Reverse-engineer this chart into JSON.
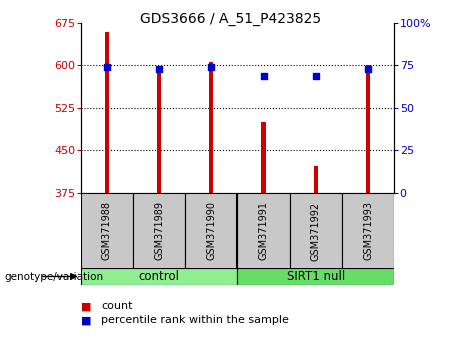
{
  "title": "GDS3666 / A_51_P423825",
  "samples": [
    "GSM371988",
    "GSM371989",
    "GSM371990",
    "GSM371991",
    "GSM371992",
    "GSM371993"
  ],
  "bar_values": [
    660,
    590,
    607,
    500,
    422,
    601
  ],
  "percentile_values": [
    74,
    73,
    74,
    69,
    69,
    73
  ],
  "ylim_left": [
    375,
    675
  ],
  "ylim_right": [
    0,
    100
  ],
  "yticks_left": [
    375,
    450,
    525,
    600,
    675
  ],
  "yticks_right": [
    0,
    25,
    50,
    75,
    100
  ],
  "bar_color": "#cc0000",
  "dot_color": "#0000cc",
  "bar_width": 0.08,
  "group_colors": [
    "#90ee90",
    "#66dd66"
  ],
  "group_labels": [
    "control",
    "SIRT1 null"
  ],
  "group_sizes": [
    3,
    3
  ],
  "ylabel_left_color": "#cc0000",
  "ylabel_right_color": "#0000cc",
  "genotype_label": "genotype/variation",
  "legend_count_label": "count",
  "legend_percentile_label": "percentile rank within the sample",
  "title_fontsize": 10,
  "tick_fontsize": 8,
  "sample_fontsize": 7,
  "group_fontsize": 8.5,
  "legend_fontsize": 8
}
